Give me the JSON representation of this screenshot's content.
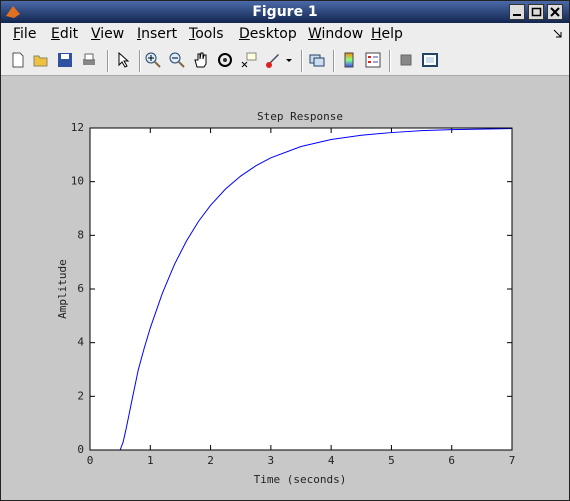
{
  "window": {
    "title": "Figure 1",
    "menu": [
      "File",
      "Edit",
      "View",
      "Insert",
      "Tools",
      "Desktop",
      "Window",
      "Help"
    ]
  },
  "chart_data": {
    "type": "line",
    "title": "Step Response",
    "x_label": "Time (seconds)",
    "y_label": "Amplitude",
    "x": [
      0,
      0.5,
      0.55,
      0.6,
      0.7,
      0.8,
      0.9,
      1.0,
      1.2,
      1.4,
      1.6,
      1.8,
      2.0,
      2.25,
      2.5,
      2.75,
      3.0,
      3.5,
      4.0,
      4.5,
      5.0,
      5.5,
      6.0,
      6.5,
      7.0
    ],
    "values": [
      0,
      0,
      0.3,
      0.8,
      1.9,
      2.98,
      3.8,
      4.55,
      5.84,
      6.91,
      7.79,
      8.52,
      9.12,
      9.73,
      10.21,
      10.59,
      10.89,
      11.31,
      11.57,
      11.73,
      11.83,
      11.9,
      11.94,
      11.96,
      11.98
    ],
    "color": "#0000ff",
    "steady_state": 12,
    "xlim": [
      0,
      7
    ],
    "ylim": [
      0,
      12
    ],
    "xticks": [
      0,
      1,
      2,
      3,
      4,
      5,
      6,
      7
    ],
    "yticks": [
      0,
      2,
      4,
      6,
      8,
      10,
      12
    ]
  }
}
